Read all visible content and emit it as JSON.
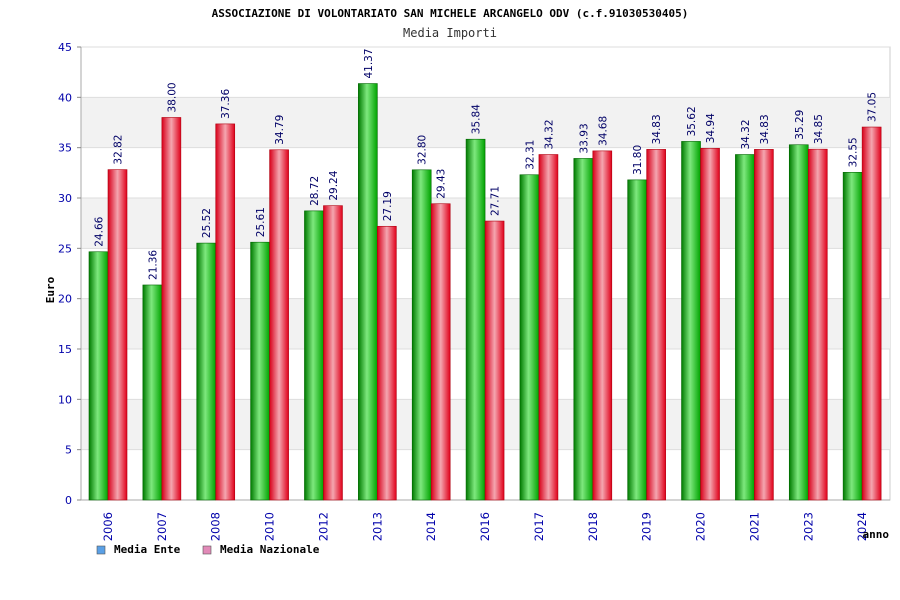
{
  "chart_data": {
    "type": "bar",
    "title": "ASSOCIAZIONE DI VOLONTARIATO SAN MICHELE ARCANGELO ODV (c.f.91030530405)",
    "subtitle": "Media Importi",
    "xlabel": "anno",
    "ylabel": "Euro",
    "ylim": [
      0,
      45
    ],
    "yticks": [
      "0",
      "5",
      "10",
      "15",
      "20",
      "25",
      "30",
      "35",
      "40",
      "45"
    ],
    "categories": [
      "2006",
      "2007",
      "2008",
      "2010",
      "2012",
      "2013",
      "2014",
      "2016",
      "2017",
      "2018",
      "2019",
      "2020",
      "2021",
      "2023",
      "2024"
    ],
    "series": [
      {
        "name": "Media Ente",
        "color": "#00aa00",
        "legend_color": "#5aa0e6",
        "values": [
          24.66,
          21.36,
          25.52,
          25.61,
          28.72,
          41.37,
          32.8,
          35.84,
          32.31,
          33.93,
          31.8,
          35.62,
          34.32,
          35.29,
          32.55
        ],
        "labels": [
          "24.66",
          "21.36",
          "25.52",
          "25.61",
          "28.72",
          "41.37",
          "32.80",
          "35.84",
          "32.31",
          "33.93",
          "31.80",
          "35.62",
          "34.32",
          "35.29",
          "32.55"
        ]
      },
      {
        "name": "Media Nazionale",
        "color": "#ee1122",
        "legend_color": "#e28ab8",
        "values": [
          32.82,
          38.0,
          37.36,
          34.79,
          29.24,
          27.19,
          29.43,
          27.71,
          34.32,
          34.68,
          34.83,
          34.94,
          34.83,
          34.85,
          37.05
        ],
        "labels": [
          "32.82",
          "38.00",
          "37.36",
          "34.79",
          "29.24",
          "27.19",
          "29.43",
          "27.71",
          "34.32",
          "34.68",
          "34.83",
          "34.94",
          "34.83",
          "34.85",
          "37.05"
        ]
      }
    ],
    "grid": true,
    "legend": "bottom-left"
  }
}
